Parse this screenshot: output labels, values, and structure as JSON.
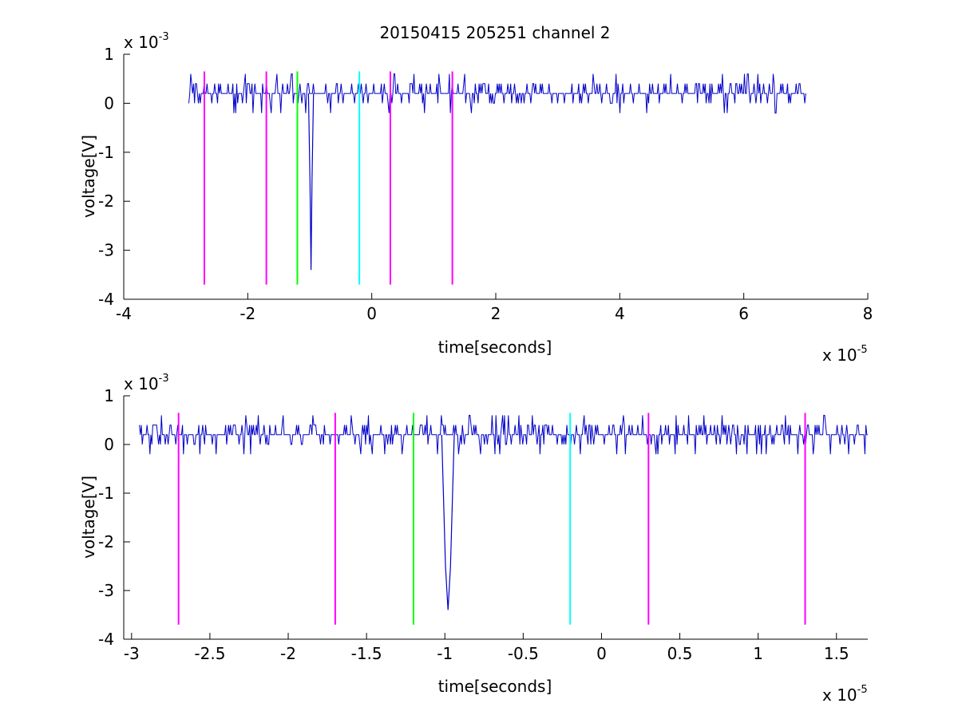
{
  "chart_data": [
    {
      "type": "line",
      "title": "20150415 205251 channel 2",
      "xlabel": "time[seconds]",
      "ylabel": "voltage[V]",
      "x_multiplier_base": "x 10",
      "x_multiplier_exp": "-5",
      "y_multiplier_base": "x 10",
      "y_multiplier_exp": "-3",
      "xlim": [
        -4,
        8
      ],
      "ylim": [
        -4,
        1
      ],
      "xticks": [
        -4,
        -2,
        0,
        2,
        4,
        6,
        8
      ],
      "xtick_labels": [
        "-4",
        "-2",
        "0",
        "2",
        "4",
        "6",
        "8"
      ],
      "yticks": [
        1,
        0,
        -1,
        -2,
        -3,
        -4
      ],
      "ytick_labels": [
        "1",
        "0",
        "-1",
        "-2",
        "-3",
        "-4"
      ],
      "grid": false,
      "signal": {
        "color": "#0000c8",
        "x_range": [
          -2.95,
          7.0
        ],
        "baseline": 0.2,
        "spike": {
          "x": -0.98,
          "min": -3.4,
          "shoulder": -1.6
        }
      },
      "markers": [
        {
          "x": -2.7,
          "color": "#ff00ff",
          "y_range": [
            -3.7,
            0.65
          ]
        },
        {
          "x": -1.7,
          "color": "#ff00ff",
          "y_range": [
            -3.7,
            0.65
          ]
        },
        {
          "x": -1.2,
          "color": "#00ff00",
          "y_range": [
            -3.7,
            0.65
          ]
        },
        {
          "x": -0.2,
          "color": "#00ffff",
          "y_range": [
            -3.7,
            0.65
          ]
        },
        {
          "x": 0.3,
          "color": "#ff00ff",
          "y_range": [
            -3.7,
            0.65
          ]
        },
        {
          "x": 1.3,
          "color": "#ff00ff",
          "y_range": [
            -3.7,
            0.65
          ]
        }
      ]
    },
    {
      "type": "line",
      "title": "",
      "xlabel": "time[seconds]",
      "ylabel": "voltage[V]",
      "x_multiplier_base": "x 10",
      "x_multiplier_exp": "-5",
      "y_multiplier_base": "x 10",
      "y_multiplier_exp": "-3",
      "xlim": [
        -3.05,
        1.7
      ],
      "ylim": [
        -4,
        1
      ],
      "xticks": [
        -3,
        -2.5,
        -2,
        -1.5,
        -1,
        -0.5,
        0,
        0.5,
        1,
        1.5
      ],
      "xtick_labels": [
        "-3",
        "-2.5",
        "-2",
        "-1.5",
        "-1",
        "-0.5",
        "0",
        "0.5",
        "1",
        "1.5"
      ],
      "yticks": [
        1,
        0,
        -1,
        -2,
        -3,
        -4
      ],
      "ytick_labels": [
        "1",
        "0",
        "-1",
        "-2",
        "-3",
        "-4"
      ],
      "grid": false,
      "signal": {
        "color": "#0000c8",
        "x_range": [
          -2.95,
          1.7
        ],
        "baseline": 0.2,
        "spike": {
          "x": -0.98,
          "min": -3.4,
          "shoulder": -2.5
        }
      },
      "markers": [
        {
          "x": -2.7,
          "color": "#ff00ff",
          "y_range": [
            -3.7,
            0.65
          ]
        },
        {
          "x": -1.7,
          "color": "#ff00ff",
          "y_range": [
            -3.7,
            0.65
          ]
        },
        {
          "x": -1.2,
          "color": "#00ff00",
          "y_range": [
            -3.7,
            0.65
          ]
        },
        {
          "x": -0.2,
          "color": "#00ffff",
          "y_range": [
            -3.7,
            0.65
          ]
        },
        {
          "x": 0.3,
          "color": "#ff00ff",
          "y_range": [
            -3.7,
            0.65
          ]
        },
        {
          "x": 1.3,
          "color": "#ff00ff",
          "y_range": [
            -3.7,
            0.65
          ]
        }
      ]
    }
  ]
}
